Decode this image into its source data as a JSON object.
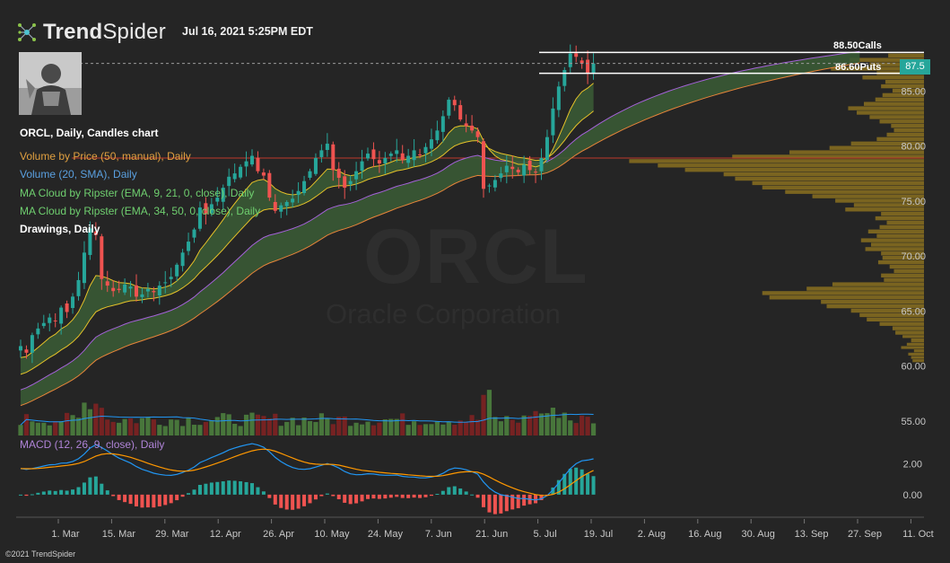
{
  "header": {
    "brand_bold": "Trend",
    "brand_light": "Spider",
    "timestamp": "Jul 16, 2021 5:25PM EDT",
    "copyright": "©2021 TrendSpider"
  },
  "watermark": {
    "symbol": "ORCL",
    "company": "Oracle Corporation"
  },
  "indicators": {
    "chart_title": "ORCL, Daily, Candles chart",
    "vbp": "Volume by Price (50, manual), Daily",
    "volume": "Volume (20, SMA), Daily",
    "cloud1": "MA Cloud by Ripster (EMA, 9, 21, 0, close), Daily",
    "cloud2": "MA Cloud by Ripster (EMA, 34, 50, 0, close), Daily",
    "drawings": "Drawings, Daily",
    "macd": "MACD (12, 26, 9, close), Daily"
  },
  "levels": {
    "calls_value": "88.50",
    "calls_text": "Calls",
    "puts_value": "86.60",
    "puts_text": "Puts",
    "last_price": "87.5"
  },
  "colors": {
    "background": "#252525",
    "up": "#26a69a",
    "down": "#ef5350",
    "cloud_fill": "#3a5a35",
    "ema_fast": "#e6c229",
    "ema_purple": "#a462d8",
    "ema_orange": "#e8843a",
    "vbp": "#8a7020",
    "macd_line": "#2196f3",
    "signal_line": "#ff9800",
    "level_line": "#ffffff",
    "vbp_line": "#c0392b",
    "label_orange": "#e0a040",
    "label_blue": "#5aa0e0",
    "label_green": "#6fcf6f",
    "label_purple": "#b084d8"
  },
  "chart_data": {
    "type": "candlestick",
    "symbol": "ORCL",
    "title": "ORCL, Daily, Candles chart",
    "timeframe": "Daily",
    "x_tick_labels": [
      "1. Mar",
      "15. Mar",
      "29. Mar",
      "12. Apr",
      "26. Apr",
      "10. May",
      "24. May",
      "7. Jun",
      "21. Jun",
      "5. Jul",
      "19. Jul",
      "2. Aug",
      "16. Aug",
      "30. Aug",
      "13. Sep",
      "27. Sep",
      "11. Oct"
    ],
    "y_tick_labels": [
      "85.00",
      "80.00",
      "75.00",
      "70.00",
      "65.00",
      "60.00",
      "55.00"
    ],
    "y_range": [
      54,
      90
    ],
    "macd_tick_labels": [
      "2.00",
      "0.00"
    ],
    "macd_range": [
      -1.0,
      3.2
    ],
    "close": [
      61.8,
      61.2,
      62.8,
      63.4,
      63.9,
      64.4,
      64.1,
      65.3,
      64.9,
      66.3,
      67.8,
      70.3,
      72.5,
      71.9,
      67.9,
      67.3,
      66.8,
      66.9,
      67.4,
      67.2,
      66.3,
      66.5,
      67.0,
      66.7,
      67.3,
      67.6,
      68.1,
      69.2,
      70.3,
      71.3,
      72.4,
      74.4,
      73.8,
      74.7,
      75.3,
      76.2,
      77.2,
      77.5,
      78.1,
      78.6,
      79.1,
      77.7,
      77.3,
      75.3,
      74.1,
      74.6,
      74.9,
      75.2,
      75.9,
      76.8,
      77.7,
      78.9,
      79.6,
      80.2,
      77.8,
      77.1,
      76.2,
      76.8,
      77.7,
      78.6,
      79.3,
      78.8,
      78.4,
      78.9,
      79.3,
      79.6,
      78.7,
      79.1,
      79.6,
      79.2,
      79.9,
      80.6,
      81.4,
      82.7,
      84.2,
      83.7,
      82.4,
      81.8,
      81.4,
      80.8,
      76.1,
      76.4,
      76.9,
      77.5,
      78.2,
      77.9,
      77.6,
      78.3,
      77.8,
      77.6,
      78.9,
      80.8,
      83.4,
      85.4,
      86.9,
      88.4,
      88.1,
      87.5,
      86.6,
      87.5
    ],
    "volume_price_ranges": [
      [
        60.3,
        60.6,
        0.8
      ],
      [
        60.6,
        60.9,
        0.9
      ],
      [
        60.9,
        61.2,
        1.1
      ],
      [
        61.2,
        61.5,
        0.7
      ],
      [
        61.5,
        61.8,
        1.6
      ],
      [
        61.8,
        62.1,
        1.2
      ],
      [
        62.1,
        62.5,
        0.9
      ],
      [
        62.5,
        62.8,
        1.5
      ],
      [
        62.8,
        63.2,
        2.0
      ],
      [
        63.2,
        63.6,
        2.2
      ],
      [
        63.6,
        64.0,
        3.1
      ],
      [
        64.0,
        64.4,
        4.0
      ],
      [
        64.4,
        64.8,
        4.5
      ],
      [
        64.8,
        65.2,
        5.1
      ],
      [
        65.2,
        65.6,
        6.8
      ],
      [
        65.6,
        66.0,
        7.2
      ],
      [
        66.0,
        66.4,
        10.8
      ],
      [
        66.4,
        66.8,
        11.3
      ],
      [
        66.8,
        67.2,
        8.2
      ],
      [
        67.2,
        67.6,
        6.4
      ],
      [
        67.6,
        68.0,
        2.8
      ],
      [
        68.0,
        68.4,
        3.0
      ],
      [
        68.4,
        68.8,
        2.1
      ],
      [
        68.8,
        69.2,
        2.4
      ],
      [
        69.2,
        69.6,
        3.2
      ],
      [
        69.6,
        70.0,
        2.9
      ],
      [
        70.0,
        70.4,
        3.0
      ],
      [
        70.4,
        70.8,
        4.1
      ],
      [
        70.8,
        71.2,
        3.7
      ],
      [
        71.2,
        71.6,
        4.4
      ],
      [
        71.6,
        72.0,
        3.3
      ],
      [
        72.0,
        72.4,
        3.9
      ],
      [
        72.4,
        72.8,
        3.1
      ],
      [
        72.8,
        73.2,
        2.6
      ],
      [
        73.2,
        73.6,
        3.4
      ],
      [
        73.6,
        74.0,
        3.0
      ],
      [
        74.0,
        74.4,
        5.5
      ],
      [
        74.4,
        74.8,
        4.9
      ],
      [
        74.8,
        75.2,
        6.2
      ],
      [
        75.2,
        75.6,
        7.8
      ],
      [
        75.6,
        76.0,
        9.7
      ],
      [
        76.0,
        76.4,
        11.3
      ],
      [
        76.4,
        76.8,
        12.0
      ],
      [
        76.8,
        77.2,
        13.2
      ],
      [
        77.2,
        77.6,
        14.0
      ],
      [
        77.6,
        78.0,
        16.7
      ],
      [
        78.0,
        78.4,
        18.6
      ],
      [
        78.4,
        78.8,
        20.6
      ],
      [
        78.8,
        79.2,
        13.4
      ],
      [
        79.2,
        79.6,
        9.4
      ],
      [
        79.6,
        80.0,
        6.6
      ],
      [
        80.0,
        80.4,
        5.1
      ],
      [
        80.4,
        80.8,
        3.3
      ],
      [
        80.8,
        81.2,
        2.6
      ],
      [
        81.2,
        81.6,
        2.1
      ],
      [
        81.6,
        82.0,
        2.3
      ],
      [
        82.0,
        82.4,
        3.1
      ],
      [
        82.4,
        82.8,
        3.8
      ],
      [
        82.8,
        83.2,
        4.7
      ],
      [
        83.2,
        83.6,
        5.3
      ],
      [
        83.6,
        84.0,
        4.2
      ],
      [
        84.0,
        84.4,
        3.4
      ],
      [
        84.4,
        84.8,
        2.9
      ],
      [
        84.8,
        85.2,
        2.2
      ],
      [
        85.2,
        85.6,
        3.0
      ],
      [
        85.6,
        86.0,
        2.7
      ],
      [
        86.0,
        86.4,
        4.3
      ],
      [
        86.4,
        86.8,
        3.3
      ],
      [
        86.8,
        87.2,
        6.5
      ],
      [
        87.2,
        87.6,
        3.8
      ],
      [
        87.6,
        88.0,
        5.2
      ],
      [
        88.0,
        88.4,
        2.5
      ]
    ],
    "levels": [
      {
        "value": 88.5,
        "label": "Calls"
      },
      {
        "value": 86.6,
        "label": "Puts"
      }
    ],
    "last_price": 87.5,
    "volume_by_price_poc": 78.9,
    "grid": false,
    "legend": "top-left"
  }
}
